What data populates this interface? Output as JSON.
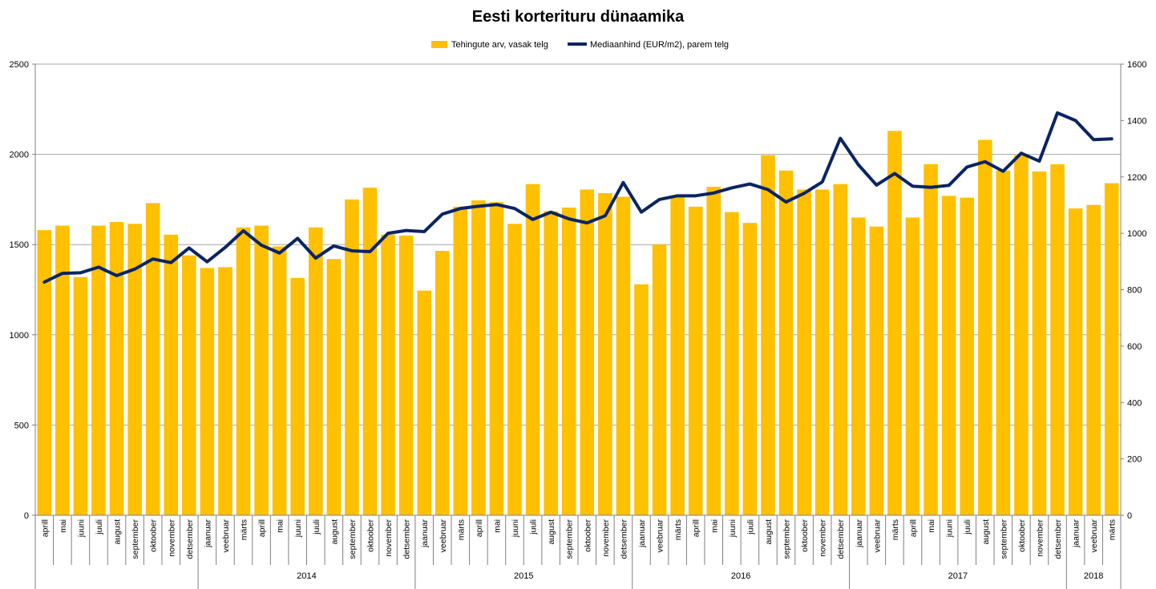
{
  "chart_data": {
    "type": "bar",
    "title": "Eesti korterituru dünaamika",
    "categories": [
      "aprill",
      "mai",
      "juuni",
      "juuli",
      "august",
      "september",
      "oktoober",
      "november",
      "detsember",
      "jaanuar",
      "veebruar",
      "märts",
      "aprill",
      "mai",
      "juuni",
      "juuli",
      "august",
      "september",
      "oktoober",
      "november",
      "detsember",
      "jaanuar",
      "veebruar",
      "märts",
      "aprill",
      "mai",
      "juuni",
      "juuli",
      "august",
      "september",
      "oktoober",
      "november",
      "detsember",
      "jaanuar",
      "veebruar",
      "märts",
      "aprill",
      "mai",
      "juuni",
      "juuli",
      "august",
      "september",
      "oktoober",
      "november",
      "detsember",
      "jaanuar",
      "veebruar",
      "märts",
      "aprill",
      "mai",
      "juuni",
      "juuli",
      "august",
      "september",
      "oktoober",
      "november",
      "detsember",
      "jaanuar",
      "veebruar",
      "märts"
    ],
    "year_groups": [
      {
        "label": "",
        "start": 0,
        "end": 8
      },
      {
        "label": "2014",
        "start": 9,
        "end": 20
      },
      {
        "label": "2015",
        "start": 21,
        "end": 32
      },
      {
        "label": "2016",
        "start": 33,
        "end": 44
      },
      {
        "label": "2017",
        "start": 45,
        "end": 56
      },
      {
        "label": "2018",
        "start": 57,
        "end": 59
      }
    ],
    "series": [
      {
        "name": "Tehingute arv, vasak telg",
        "type": "bar",
        "axis": "left",
        "color": "#FFC000",
        "values": [
          1580,
          1605,
          1320,
          1605,
          1625,
          1615,
          1730,
          1555,
          1440,
          1370,
          1375,
          1595,
          1605,
          1490,
          1315,
          1595,
          1420,
          1750,
          1815,
          1555,
          1550,
          1245,
          1465,
          1710,
          1745,
          1735,
          1615,
          1835,
          1685,
          1705,
          1805,
          1785,
          1765,
          1280,
          1500,
          1765,
          1710,
          1820,
          1680,
          1620,
          1995,
          1910,
          1805,
          1805,
          1835,
          1650,
          1600,
          2130,
          1650,
          1945,
          1770,
          1760,
          2080,
          1910,
          1995,
          1905,
          1945,
          1700,
          1720,
          1840
        ]
      },
      {
        "name": "Mediaanhind (EUR/m2), parem telg",
        "type": "line",
        "axis": "right",
        "color": "#0A2463",
        "values": [
          827,
          858,
          860,
          880,
          850,
          873,
          909,
          896,
          948,
          899,
          950,
          1009,
          958,
          930,
          982,
          912,
          955,
          938,
          935,
          1000,
          1010,
          1006,
          1068,
          1088,
          1096,
          1102,
          1088,
          1049,
          1075,
          1051,
          1037,
          1062,
          1180,
          1075,
          1120,
          1133,
          1133,
          1143,
          1161,
          1175,
          1155,
          1111,
          1142,
          1182,
          1337,
          1243,
          1171,
          1212,
          1167,
          1163,
          1170,
          1235,
          1254,
          1220,
          1284,
          1256,
          1427,
          1400,
          1332,
          1335
        ]
      }
    ],
    "y_left": {
      "min": 0,
      "max": 2500,
      "ticks": [
        "0",
        "500",
        "1000",
        "1500",
        "2000",
        "2500"
      ]
    },
    "y_right": {
      "min": 0,
      "max": 1600,
      "ticks": [
        "0",
        "200",
        "400",
        "600",
        "800",
        "1000",
        "1200",
        "1400",
        "1600"
      ]
    },
    "grid": true,
    "legend_position": "top-center"
  }
}
